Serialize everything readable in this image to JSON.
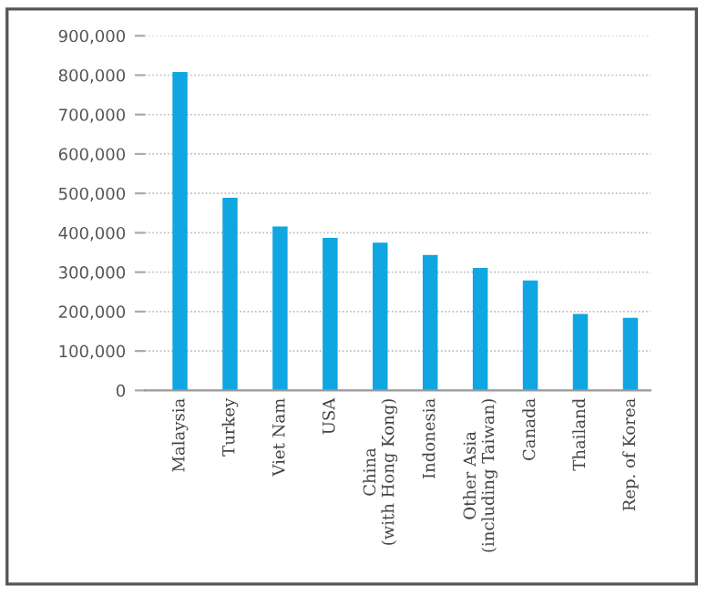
{
  "chart_data": {
    "type": "bar",
    "categories": [
      "Malaysia",
      "Turkey",
      "Viet Nam",
      "USA",
      "China\n(with Hong Kong)",
      "Indonesia",
      "Other Asia\n(including Taiwan)",
      "Canada",
      "Thailand",
      "Rep. of Korea"
    ],
    "values": [
      808000,
      489000,
      416000,
      387000,
      375000,
      344000,
      311000,
      279000,
      194000,
      184000
    ],
    "color": "#10a6e2",
    "ylim": [
      0,
      900000
    ],
    "yticks": [
      {
        "value": 0,
        "label": "0"
      },
      {
        "value": 100000,
        "label": "100,000"
      },
      {
        "value": 200000,
        "label": "200,000"
      },
      {
        "value": 300000,
        "label": "300,000"
      },
      {
        "value": 400000,
        "label": "400,000"
      },
      {
        "value": 500000,
        "label": "500,000"
      },
      {
        "value": 600000,
        "label": "600,000"
      },
      {
        "value": 700000,
        "label": "700,000"
      },
      {
        "value": 800000,
        "label": "800,000"
      },
      {
        "value": 900000,
        "label": "900,000"
      }
    ],
    "grid": "y"
  }
}
